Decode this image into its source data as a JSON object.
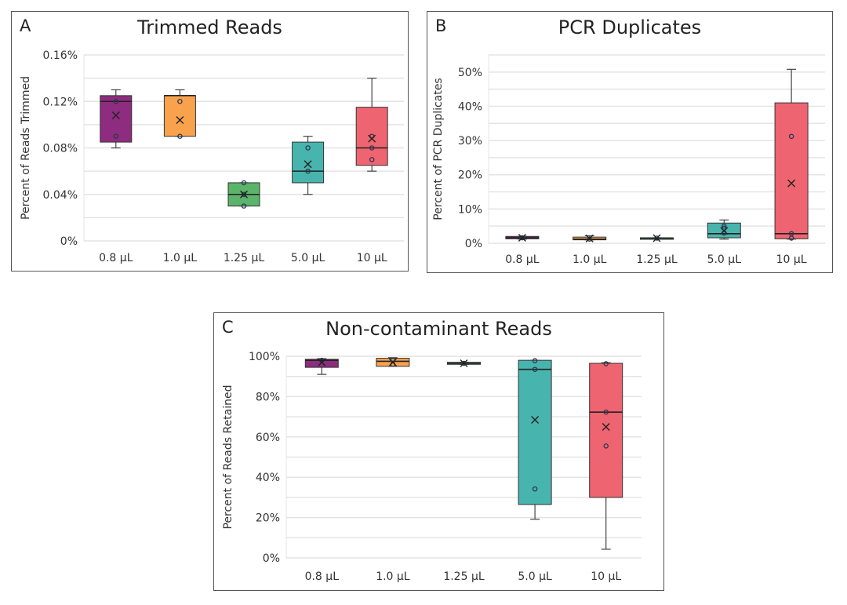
{
  "chart_data": [
    {
      "type": "box",
      "panel_label": "A",
      "title": "Trimmed Reads",
      "xlabel": "",
      "ylabel": "Percent of Reads Trimmed",
      "ylim": [
        0,
        0.16
      ],
      "yticks": [
        0,
        0.04,
        0.08,
        0.12,
        0.16
      ],
      "ytick_labels": [
        "0%",
        "0.04%",
        "0.08%",
        "0.12%",
        "0.16%"
      ],
      "minor_grid": true,
      "categories": [
        "0.8 µL",
        "1.0 µL",
        "1.25 µL",
        "5.0 µL",
        "10 µL"
      ],
      "colors": [
        "#8e2c7f",
        "#f8a24d",
        "#5bb46a",
        "#48b4ae",
        "#ee6470"
      ],
      "boxes": [
        {
          "min": 0.08,
          "q1": 0.085,
          "median": 0.12,
          "q3": 0.125,
          "max": 0.13,
          "mean": 0.108,
          "points": [
            0.12,
            0.09
          ]
        },
        {
          "min": 0.09,
          "q1": 0.09,
          "median": 0.125,
          "q3": 0.125,
          "max": 0.13,
          "mean": 0.104,
          "points": [
            0.12,
            0.09
          ]
        },
        {
          "min": 0.03,
          "q1": 0.03,
          "median": 0.04,
          "q3": 0.05,
          "max": 0.05,
          "mean": 0.04,
          "points": [
            0.05,
            0.04,
            0.03
          ]
        },
        {
          "min": 0.04,
          "q1": 0.05,
          "median": 0.06,
          "q3": 0.085,
          "max": 0.09,
          "mean": 0.066,
          "points": [
            0.08,
            0.06
          ]
        },
        {
          "min": 0.06,
          "q1": 0.065,
          "median": 0.08,
          "q3": 0.115,
          "max": 0.14,
          "mean": 0.088,
          "points": [
            0.09,
            0.08,
            0.07
          ]
        }
      ]
    },
    {
      "type": "box",
      "panel_label": "B",
      "title": "PCR Duplicates",
      "xlabel": "",
      "ylabel": "Percent of PCR Duplicates",
      "ylim": [
        0,
        55
      ],
      "yticks": [
        0,
        10,
        20,
        30,
        40,
        50
      ],
      "ytick_labels": [
        "0%",
        "10%",
        "20%",
        "30%",
        "40%",
        "50%"
      ],
      "minor_grid": true,
      "categories": [
        "0.8 µL",
        "1.0 µL",
        "1.25 µL",
        "5.0 µL",
        "10 µL"
      ],
      "colors": [
        "#8e2c7f",
        "#f8a24d",
        "#5bb46a",
        "#48b4ae",
        "#ee6470"
      ],
      "boxes": [
        {
          "min": 1.2,
          "q1": 1.3,
          "median": 1.6,
          "q3": 2.0,
          "max": 2.0,
          "mean": 1.6,
          "points": [
            1.6
          ]
        },
        {
          "min": 1.0,
          "q1": 1.0,
          "median": 1.2,
          "q3": 1.8,
          "max": 2.2,
          "mean": 1.4,
          "points": [
            1.2
          ]
        },
        {
          "min": 1.3,
          "q1": 1.3,
          "median": 1.5,
          "q3": 1.6,
          "max": 1.6,
          "mean": 1.5,
          "points": [
            1.5
          ]
        },
        {
          "min": 1.2,
          "q1": 1.6,
          "median": 2.8,
          "q3": 5.9,
          "max": 6.8,
          "mean": 3.6,
          "points": [
            5.0,
            4.4,
            3.0
          ]
        },
        {
          "min": 1.2,
          "q1": 1.3,
          "median": 2.8,
          "q3": 41.0,
          "max": 50.8,
          "mean": 17.5,
          "points": [
            31.2,
            2.8,
            1.5
          ]
        }
      ]
    },
    {
      "type": "box",
      "panel_label": "C",
      "title": "Non-contaminant Reads",
      "xlabel": "",
      "ylabel": "Percent of Reads Retained",
      "ylim": [
        0,
        100
      ],
      "yticks": [
        0,
        20,
        40,
        60,
        80,
        100
      ],
      "ytick_labels": [
        "0%",
        "20%",
        "40%",
        "60%",
        "80%",
        "100%"
      ],
      "minor_grid": true,
      "categories": [
        "0.8 µL",
        "1.0 µL",
        "1.25 µL",
        "5.0 µL",
        "10 µL"
      ],
      "colors": [
        "#8e2c7f",
        "#f8a24d",
        "#5bb46a",
        "#48b4ae",
        "#ee6470"
      ],
      "boxes": [
        {
          "min": 91.0,
          "q1": 94.5,
          "median": 98.0,
          "q3": 98.5,
          "max": 98.8,
          "mean": 97.0,
          "points": [
            98.0
          ]
        },
        {
          "min": 95.0,
          "q1": 95.0,
          "median": 97.5,
          "q3": 99.0,
          "max": 99.3,
          "mean": 97.0,
          "points": [
            96.0,
            98.0
          ]
        },
        {
          "min": 96.0,
          "q1": 96.0,
          "median": 96.5,
          "q3": 97.0,
          "max": 97.0,
          "mean": 96.5,
          "points": [
            96.5
          ]
        },
        {
          "min": 19.2,
          "q1": 26.5,
          "median": 93.5,
          "q3": 98.0,
          "max": 98.0,
          "mean": 68.5,
          "points": [
            97.8,
            93.5,
            34.2
          ]
        },
        {
          "min": 4.3,
          "q1": 30.0,
          "median": 72.3,
          "q3": 96.5,
          "max": 96.8,
          "mean": 65.0,
          "points": [
            96.3,
            72.3,
            55.5
          ]
        }
      ]
    }
  ]
}
